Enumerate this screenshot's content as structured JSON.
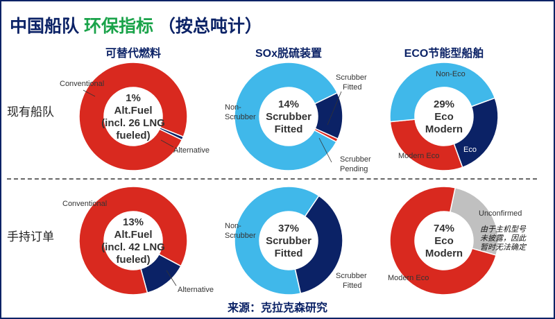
{
  "title": {
    "part1": "中国船队 ",
    "part2": "环保指标",
    "part3": "  （按总吨计）"
  },
  "columns": [
    "可替代燃料",
    "SOx脱硫装置",
    "ECO节能型船舶"
  ],
  "rows": [
    "现有船队",
    "手持订单"
  ],
  "source": "来源：克拉克森研究",
  "colors": {
    "conventional": "#d9291f",
    "navy": "#0b2266",
    "light_blue": "#40b8ea",
    "grey": "#c0c0c0"
  },
  "chart_data": [
    {
      "type": "pie",
      "row": "现有船队",
      "column": "可替代燃料",
      "start_deg": 112,
      "center_text": [
        "1%",
        "Alt.Fuel",
        "(incl. 26 LNG",
        "fueled)"
      ],
      "slices": [
        {
          "name": "Alternative",
          "value": 1,
          "color": "#0b2266"
        },
        {
          "name": "Conventional",
          "value": 99,
          "color": "#d9291f"
        }
      ]
    },
    {
      "type": "pie",
      "row": "现有船队",
      "column": "SOx脱硫装置",
      "start_deg": 64,
      "center_text": [
        "14%",
        "Scrubber",
        "Fitted"
      ],
      "slices": [
        {
          "name": "Scrubber Fitted",
          "value": 14,
          "color": "#0b2266"
        },
        {
          "name": "Scrubber Pending",
          "value": 1,
          "color": "#d9291f"
        },
        {
          "name": "Non-Scrubber",
          "value": 85,
          "color": "#40b8ea"
        }
      ]
    },
    {
      "type": "pie",
      "row": "现有船队",
      "column": "ECO节能型船舶",
      "start_deg": 70,
      "center_text": [
        "29%",
        "Eco",
        "Modern"
      ],
      "slices": [
        {
          "name": "Eco",
          "value": 25,
          "color": "#0b2266"
        },
        {
          "name": "Modern Eco",
          "value": 29,
          "color": "#d9291f"
        },
        {
          "name": "Non-Eco",
          "value": 46,
          "color": "#40b8ea"
        }
      ]
    },
    {
      "type": "pie",
      "row": "手持订单",
      "column": "可替代燃料",
      "start_deg": 118,
      "center_text": [
        "13%",
        "Alt.Fuel",
        "(incl. 42 LNG",
        "fueled)"
      ],
      "slices": [
        {
          "name": "Alternative",
          "value": 13,
          "color": "#0b2266"
        },
        {
          "name": "Conventional",
          "value": 87,
          "color": "#d9291f"
        }
      ]
    },
    {
      "type": "pie",
      "row": "手持订单",
      "column": "SOx脱硫装置",
      "start_deg": 34,
      "center_text": [
        "37%",
        "Scrubber",
        "Fitted"
      ],
      "slices": [
        {
          "name": "Scrubber Fitted",
          "value": 37,
          "color": "#0b2266"
        },
        {
          "name": "Non-Scrubber",
          "value": 63,
          "color": "#40b8ea"
        }
      ]
    },
    {
      "type": "pie",
      "row": "手持订单",
      "column": "ECO节能型船舶",
      "start_deg": 12,
      "center_text": [
        "74%",
        "Eco",
        "Modern"
      ],
      "slices": [
        {
          "name": "Unconfirmed",
          "value": 26,
          "color": "#c0c0c0"
        },
        {
          "name": "Modern Eco",
          "value": 74,
          "color": "#d9291f"
        }
      ],
      "annotation": [
        "由于主机型号",
        "未披露，因此",
        "暂时无法确定"
      ]
    }
  ],
  "labels": [
    {
      "chart": 0,
      "lines": [
        "Conventional"
      ]
    },
    {
      "chart": 0,
      "lines": [
        "Alternative"
      ]
    },
    {
      "chart": 1,
      "lines": [
        "Scrubber",
        "Fitted"
      ]
    },
    {
      "chart": 1,
      "lines": [
        "Non-",
        "Scrubber"
      ]
    },
    {
      "chart": 1,
      "lines": [
        "Scrubber",
        "Pending"
      ]
    },
    {
      "chart": 2,
      "lines": [
        "Non-Eco"
      ]
    },
    {
      "chart": 2,
      "lines": [
        "Eco"
      ]
    },
    {
      "chart": 2,
      "lines": [
        "Modern Eco"
      ]
    },
    {
      "chart": 3,
      "lines": [
        "Conventional"
      ]
    },
    {
      "chart": 3,
      "lines": [
        "Alternative"
      ]
    },
    {
      "chart": 4,
      "lines": [
        "Non-",
        "Scrubber"
      ]
    },
    {
      "chart": 4,
      "lines": [
        "Scrubber",
        "Fitted"
      ]
    },
    {
      "chart": 5,
      "lines": [
        "Unconfirmed"
      ]
    },
    {
      "chart": 5,
      "lines": [
        "Modern Eco"
      ]
    }
  ]
}
